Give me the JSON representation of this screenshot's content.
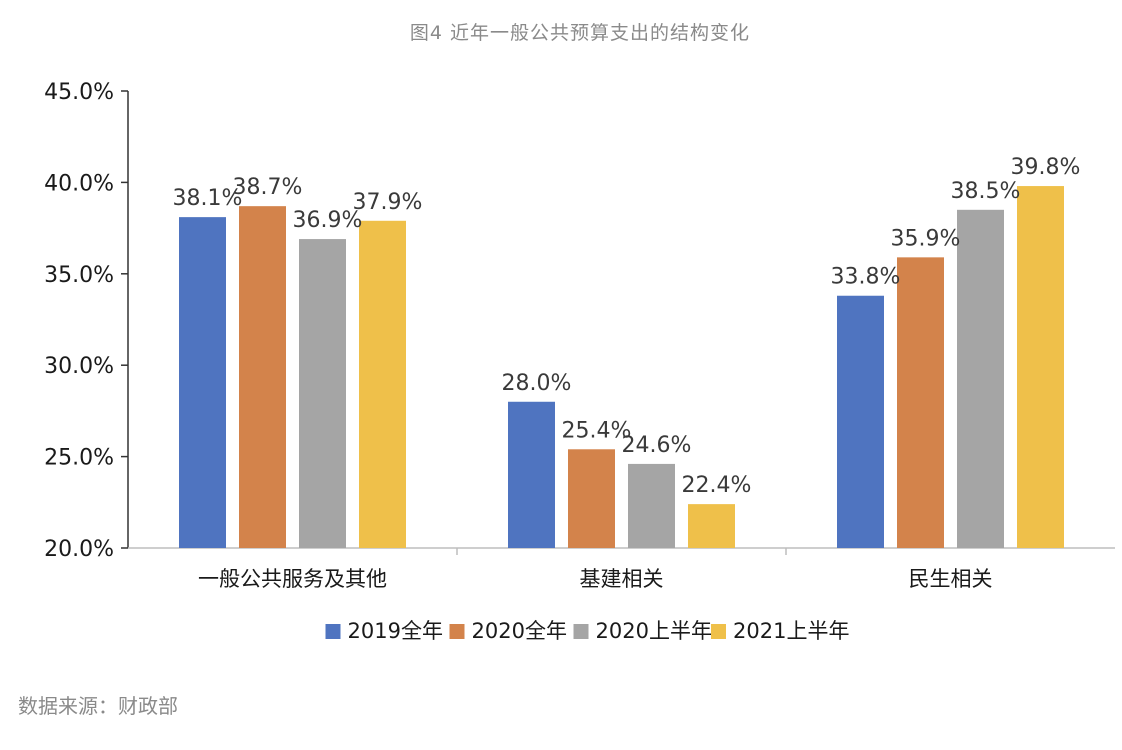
{
  "page": {
    "title": "图4 近年一般公共预算支出的结构变化",
    "source": "数据来源：财政部"
  },
  "chart_data": {
    "type": "bar",
    "title": "图4 近年一般公共预算支出的结构变化",
    "categories": [
      "一般公共服务及其他",
      "基建相关",
      "民生相关"
    ],
    "series": [
      {
        "name": "2019全年",
        "color": "#4f74c0",
        "values": [
          38.1,
          28.0,
          33.8
        ],
        "labels": [
          "38.1%",
          "28.0%",
          "33.8%"
        ]
      },
      {
        "name": "2020全年",
        "color": "#d3834b",
        "values": [
          38.7,
          25.4,
          35.9
        ],
        "labels": [
          "38.7%",
          "25.4%",
          "35.9%"
        ]
      },
      {
        "name": "2020上半年",
        "color": "#a5a5a5",
        "values": [
          36.9,
          24.6,
          38.5
        ],
        "labels": [
          "36.9%",
          "24.6%",
          "38.5%"
        ]
      },
      {
        "name": "2021上半年",
        "color": "#efc04a",
        "values": [
          37.9,
          22.4,
          39.8
        ],
        "labels": [
          "37.9%",
          "22.4%",
          "39.8%"
        ]
      }
    ],
    "ylim": [
      20,
      45
    ],
    "yticks": [
      20,
      25,
      30,
      35,
      40,
      45
    ],
    "ytick_labels": [
      "20.0%",
      "25.0%",
      "30.0%",
      "35.0%",
      "40.0%",
      "45.0%"
    ],
    "xlabel": "",
    "ylabel": "",
    "grid": false,
    "legend": "bottom"
  }
}
